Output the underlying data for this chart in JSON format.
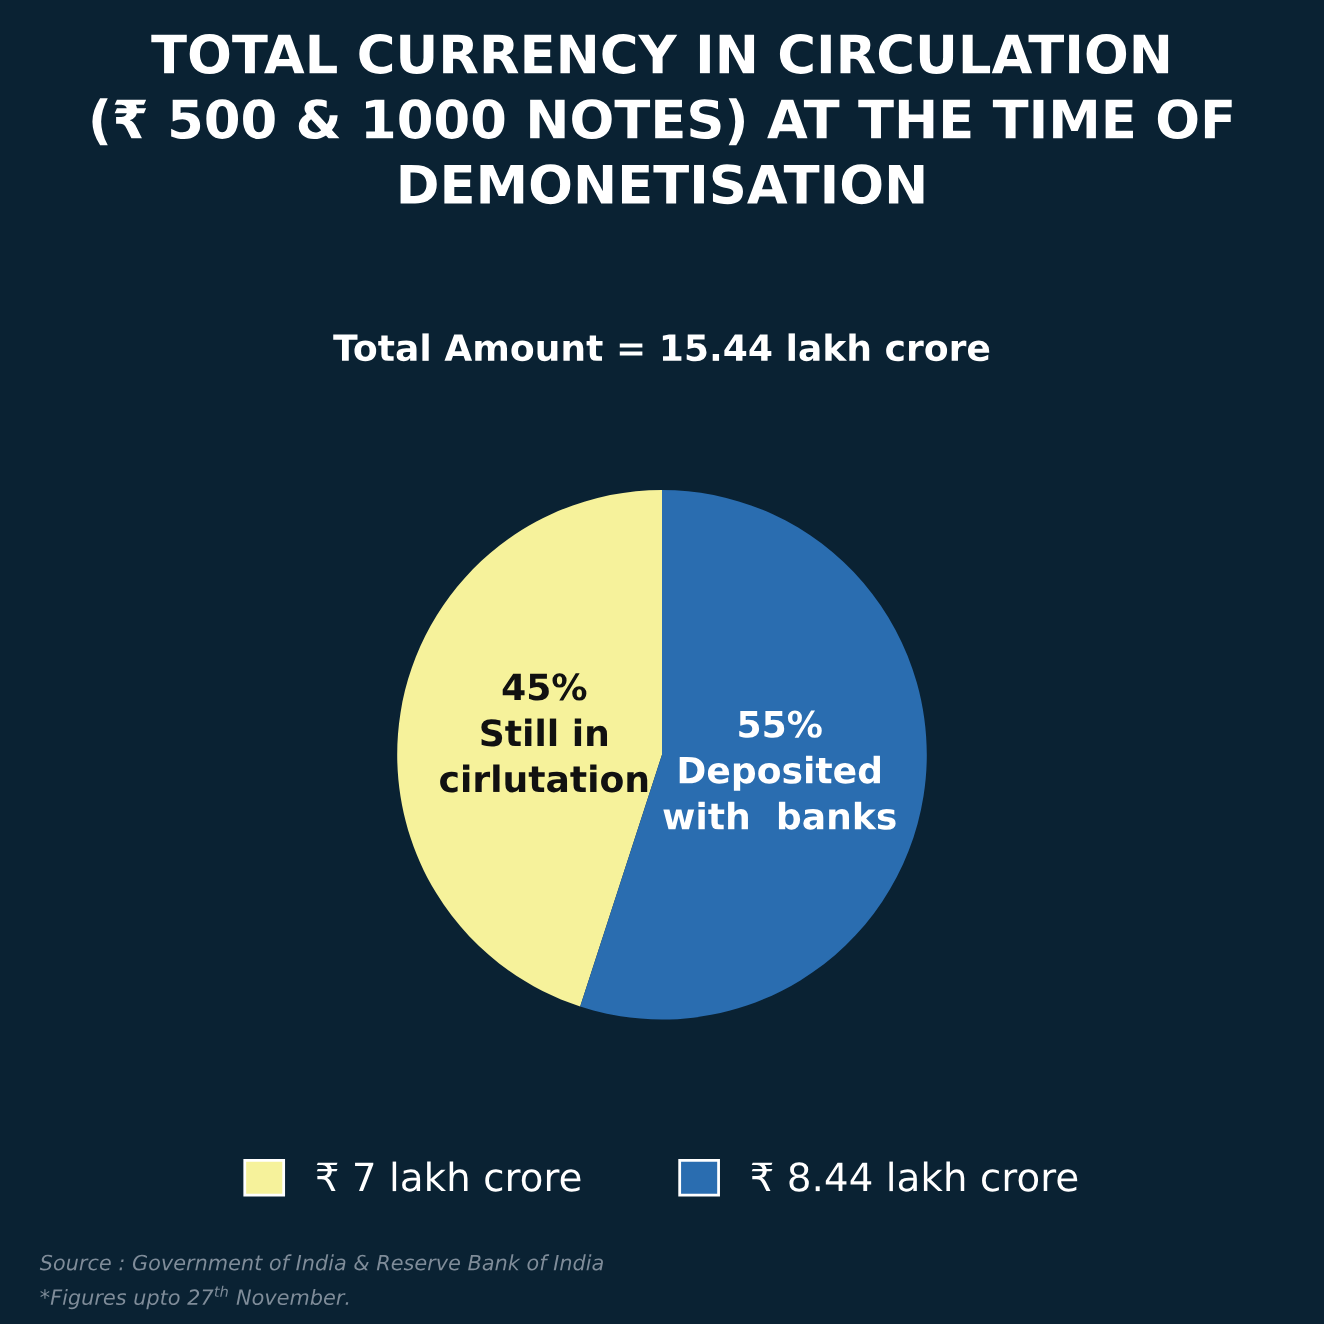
{
  "chart_data": {
    "type": "pie",
    "title": "TOTAL CURRENCY IN CIRCULATION\n(₹ 500 & 1000 NOTES) AT THE TIME OF\nDEMONETISATION",
    "subtitle": "Total Amount = 15.44 lakh crore",
    "categories": [
      "₹ 7 lakh crore",
      "₹ 8.44 lakh crore"
    ],
    "values": [
      45,
      55
    ],
    "colors": [
      "#f6f29b",
      "#2a6db0"
    ],
    "value_labels": [
      "45%\nStill in\ncirlutation",
      "55%\nDeposited\nwith  banks"
    ],
    "legend": "bottom",
    "annotations": [
      "Source : Government of India & Reserve Bank of India",
      "*Figures upto 27$^{th}$ November."
    ]
  }
}
